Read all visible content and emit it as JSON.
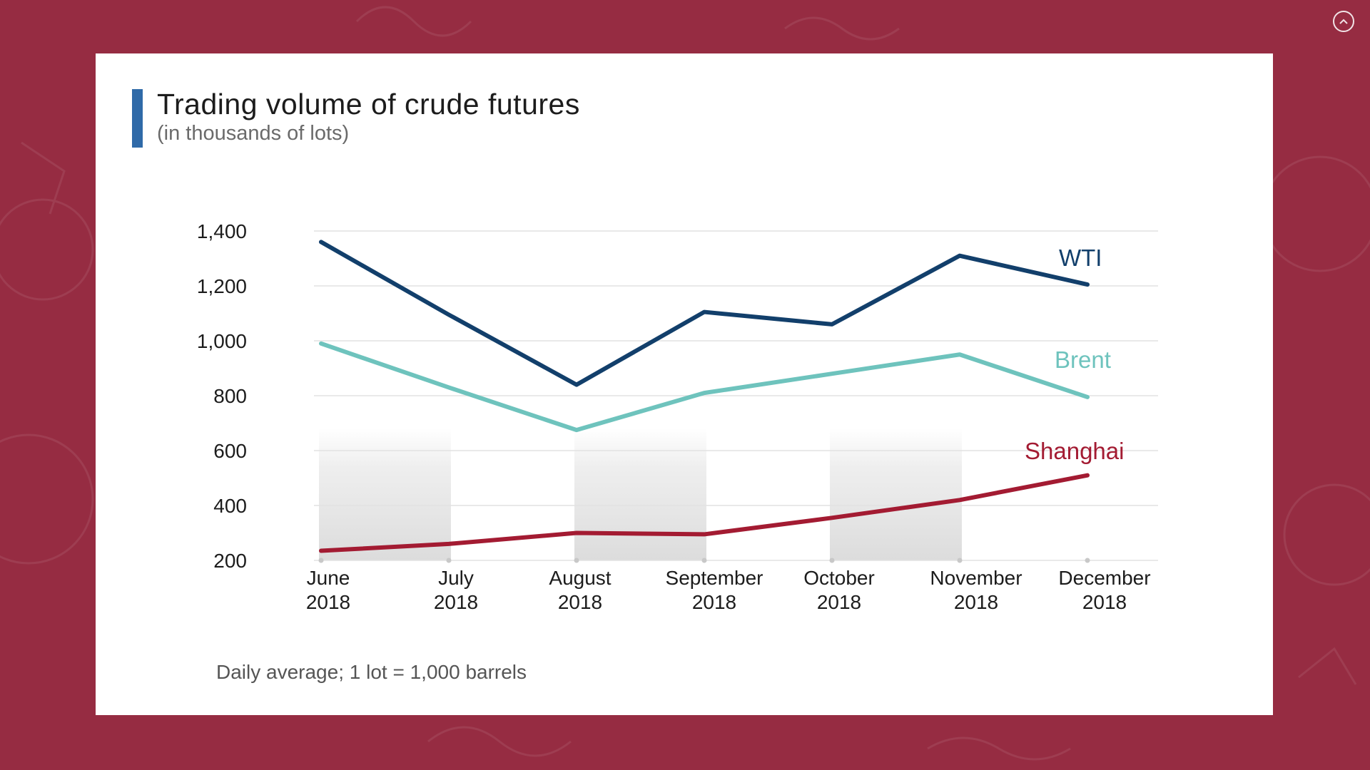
{
  "chart_data": {
    "type": "line",
    "title": "Trading volume of crude futures",
    "subtitle": "(in thousands of lots)",
    "footnote": "Daily average; 1 lot = 1,000 barrels",
    "categories": [
      [
        "June",
        "2018"
      ],
      [
        "July",
        "2018"
      ],
      [
        "August",
        "2018"
      ],
      [
        "September",
        "2018"
      ],
      [
        "October",
        "2018"
      ],
      [
        "November",
        "2018"
      ],
      [
        "December",
        "2018"
      ]
    ],
    "ylim": [
      200,
      1400
    ],
    "yticks": [
      200,
      400,
      600,
      800,
      1000,
      1200,
      1400
    ],
    "ytick_labels": [
      "200",
      "400",
      "600",
      "800",
      "1,000",
      "1,200",
      "1,400"
    ],
    "shaded_periods": [
      [
        0,
        1
      ],
      [
        2,
        3
      ],
      [
        4,
        5
      ]
    ],
    "series": [
      {
        "name": "WTI",
        "color": "#123f6b",
        "values": [
          1360,
          1095,
          840,
          1105,
          1060,
          1310,
          1205
        ]
      },
      {
        "name": "Brent",
        "color": "#6ec3bd",
        "values": [
          990,
          830,
          675,
          810,
          880,
          950,
          795
        ]
      },
      {
        "name": "Shanghai",
        "color": "#a31b32",
        "values": [
          235,
          260,
          300,
          295,
          355,
          420,
          510
        ]
      }
    ],
    "grid": true,
    "legend": "inline"
  },
  "ui": {
    "scroll_up_icon": "chevron-up-circle-icon",
    "accent_color": "#2f6aa8",
    "background_color": "#962c42"
  }
}
